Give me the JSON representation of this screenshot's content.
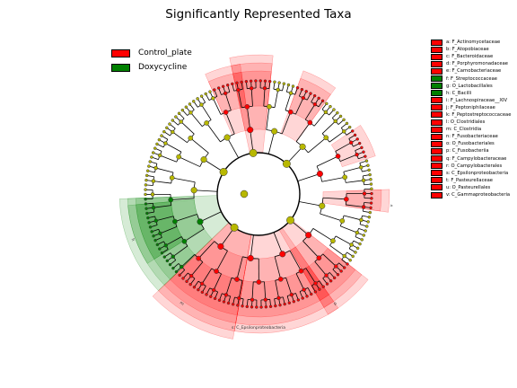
{
  "title": "Significantly Represented Taxa",
  "colors": {
    "control": "#ff0000",
    "doxy": "#008000",
    "neutral_node": "#b8b800",
    "edge": "#000000"
  },
  "legend": [
    {
      "label": "Control_plate",
      "color": "#ff0000"
    },
    {
      "label": "Doxycycline",
      "color": "#008000"
    }
  ],
  "taxa": [
    {
      "key": "a",
      "label": "a: F_Actinomycetaceae",
      "color": "#ff0000"
    },
    {
      "key": "b",
      "label": "b: F_Atopobiaceae",
      "color": "#ff0000"
    },
    {
      "key": "c",
      "label": "c: F_Bacteroidaceae",
      "color": "#ff0000"
    },
    {
      "key": "d",
      "label": "d: F_Porphyromonadaceae",
      "color": "#ff0000"
    },
    {
      "key": "e",
      "label": "e: F_Carnobacteriaceae",
      "color": "#ff0000"
    },
    {
      "key": "f",
      "label": "f: F_Streptococcaceae",
      "color": "#008000"
    },
    {
      "key": "g",
      "label": "g: O_Lactobacillales",
      "color": "#008000"
    },
    {
      "key": "h",
      "label": "h: C_Bacilli",
      "color": "#008000"
    },
    {
      "key": "i",
      "label": "i: F_Lachnospiraceae__XIV",
      "color": "#ff0000"
    },
    {
      "key": "j",
      "label": "j: F_Peptoniphilaceae",
      "color": "#ff0000"
    },
    {
      "key": "k",
      "label": "k: F_Peptostreptococcaceae",
      "color": "#ff0000"
    },
    {
      "key": "l",
      "label": "l: O_Clostridiales",
      "color": "#ff0000"
    },
    {
      "key": "m",
      "label": "m: C_Clostridia",
      "color": "#ff0000"
    },
    {
      "key": "n",
      "label": "n: F_Fusobacteriaceae",
      "color": "#ff0000"
    },
    {
      "key": "o",
      "label": "o: O_Fusobacteriales",
      "color": "#ff0000"
    },
    {
      "key": "p",
      "label": "p: C_Fusobacteriia",
      "color": "#ff0000"
    },
    {
      "key": "q",
      "label": "q: F_Campylobacteraceae",
      "color": "#ff0000"
    },
    {
      "key": "r",
      "label": "r: O_Campylobacterales",
      "color": "#ff0000"
    },
    {
      "key": "s",
      "label": "s: C_Epsilonproteobacteria",
      "color": "#ff0000"
    },
    {
      "key": "t",
      "label": "t: F_Pasteurellaceae",
      "color": "#ff0000"
    },
    {
      "key": "u",
      "label": "u: O_Pasteurellales",
      "color": "#ff0000"
    },
    {
      "key": "v",
      "label": "v: C_Gammaproteobacteria",
      "color": "#ff0000"
    }
  ],
  "clades": [
    {
      "group": "control",
      "start": 145,
      "end": 190,
      "depth": 3
    },
    {
      "group": "control",
      "start": 190,
      "end": 226,
      "depth": 4
    },
    {
      "group": "doxy",
      "start": 226,
      "end": 268,
      "depth": 3
    },
    {
      "group": "doxy",
      "start": 238,
      "end": 265,
      "depth": 2
    },
    {
      "group": "control",
      "start": 336,
      "end": 352,
      "depth": 2
    },
    {
      "group": "control",
      "start": 348,
      "end": 366,
      "depth": 3
    },
    {
      "group": "control",
      "start": 20,
      "end": 36,
      "depth": 2
    },
    {
      "group": "control",
      "start": 56,
      "end": 72,
      "depth": 1
    },
    {
      "group": "control",
      "start": 88,
      "end": 98,
      "depth": 2
    },
    {
      "group": "control",
      "start": 128,
      "end": 150,
      "depth": 3
    }
  ],
  "clade_labels": [
    {
      "text": "s: C_Epsilonproteobacteria",
      "angle": 180
    },
    {
      "text": "m",
      "angle": 215
    },
    {
      "text": "h",
      "angle": 250
    },
    {
      "text": "p",
      "angle": 145
    },
    {
      "text": "v",
      "angle": 95
    }
  ]
}
